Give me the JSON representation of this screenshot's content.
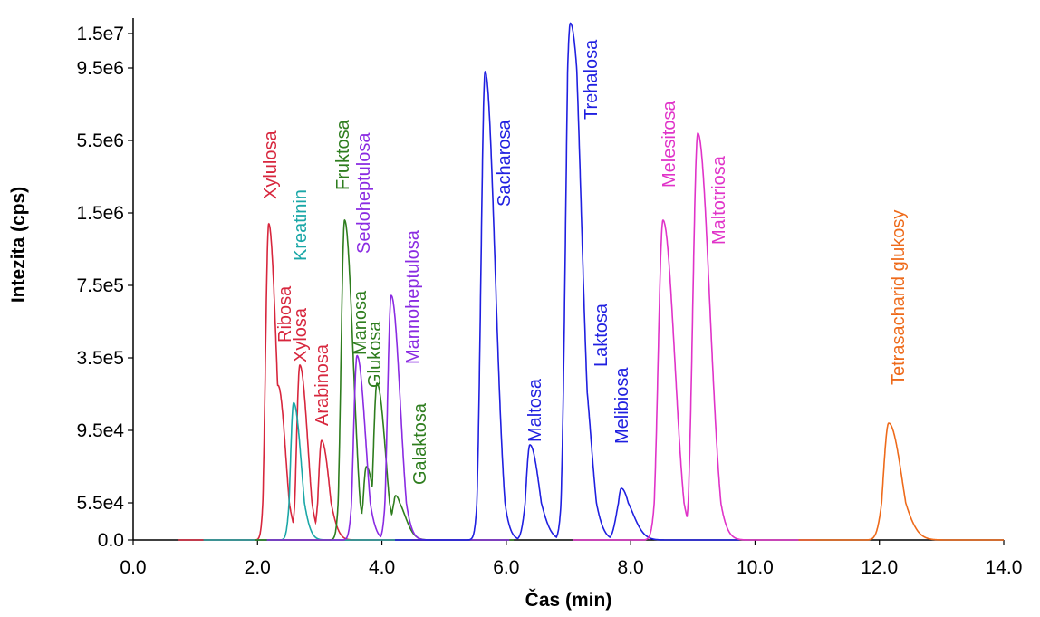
{
  "chart_data": {
    "type": "line",
    "xlabel": "Čas (min)",
    "ylabel": "Intezita (cps)",
    "xlim": [
      0,
      14
    ],
    "x_ticks": [
      "0.0",
      "2.0",
      "4.0",
      "6.0",
      "8.0",
      "10.0",
      "12.0",
      "14.0"
    ],
    "y_scale": "piecewise (non-linear, as printed tick labels)",
    "y_ticks": [
      "0.0",
      "5.5e4",
      "9.5e4",
      "3.5e5",
      "7.5e5",
      "1.5e6",
      "5.5e6",
      "9.5e6",
      "1.5e7"
    ],
    "grid": false,
    "legend": "none",
    "series": [
      {
        "name": "Xylulosa",
        "color": "#d7263d",
        "peak_time": 2.18,
        "peak_tick_level": 4.85
      },
      {
        "name": "Ribosa",
        "color": "#d7263d",
        "peak_time": 2.33,
        "peak_tick_level": 2.62
      },
      {
        "name": "Xylosa",
        "color": "#d7263d",
        "peak_time": 2.68,
        "peak_tick_level": 2.9
      },
      {
        "name": "Arabinosa",
        "color": "#d7263d",
        "peak_time": 3.03,
        "peak_tick_level": 1.86
      },
      {
        "name": "Kreatinin",
        "color": "#1aa7a7",
        "peak_time": 2.58,
        "peak_tick_level": 2.38
      },
      {
        "name": "Fruktosa",
        "color": "#2e7d1e",
        "peak_time": 3.4,
        "peak_tick_level": 4.9
      },
      {
        "name": "Manosa",
        "color": "#2e7d1e",
        "peak_time": 3.75,
        "peak_tick_level": 1.5
      },
      {
        "name": "Glukosa",
        "color": "#2e7d1e",
        "peak_time": 3.92,
        "peak_tick_level": 2.65
      },
      {
        "name": "Galaktosa",
        "color": "#2e7d1e",
        "peak_time": 4.22,
        "peak_tick_level": 1.1
      },
      {
        "name": "Sedoheptulosa",
        "color": "#8a2be2",
        "peak_time": 3.6,
        "peak_tick_level": 3.03
      },
      {
        "name": "Mannoheptulosa",
        "color": "#8a2be2",
        "peak_time": 4.15,
        "peak_tick_level": 3.86
      },
      {
        "name": "Sacharosa",
        "color": "#1f1fe0",
        "peak_time": 5.66,
        "peak_tick_level": 6.95
      },
      {
        "name": "Maltosa",
        "color": "#1f1fe0",
        "peak_time": 6.38,
        "peak_tick_level": 1.8
      },
      {
        "name": "Trehalosa",
        "color": "#1f1fe0",
        "peak_time": 7.03,
        "peak_tick_level": 8.3
      },
      {
        "name": "Laktosa",
        "color": "#1f1fe0",
        "peak_time": 7.18,
        "peak_tick_level": 3.2
      },
      {
        "name": "Melibiosa",
        "color": "#1f1fe0",
        "peak_time": 7.85,
        "peak_tick_level": 1.2
      },
      {
        "name": "Melesitosa",
        "color": "#e033c8",
        "peak_time": 8.52,
        "peak_tick_level": 4.9
      },
      {
        "name": "Maltotriosa",
        "color": "#e033c8",
        "peak_time": 9.08,
        "peak_tick_level": 6.1
      },
      {
        "name": "Tetrasacharid glukosy",
        "color": "#ee6a1a",
        "peak_time": 12.15,
        "peak_tick_level": 2.1
      }
    ]
  }
}
